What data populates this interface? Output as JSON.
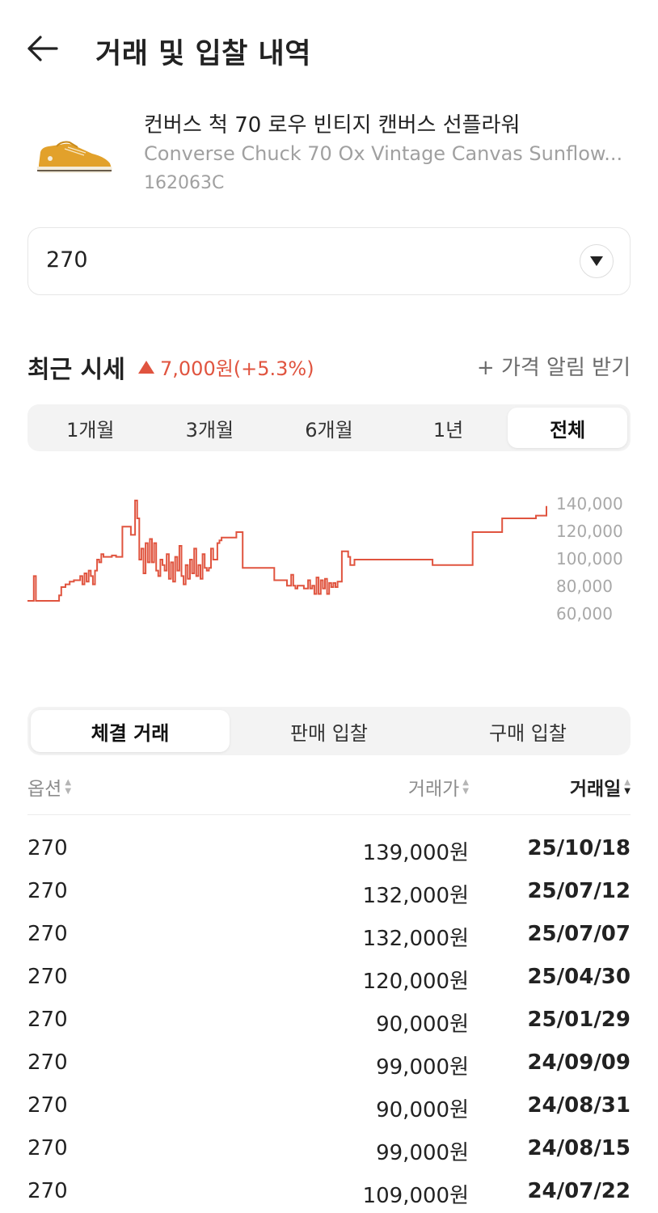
{
  "header": {
    "back_icon": "arrow-left-icon",
    "title": "거래 및 입찰 내역"
  },
  "product": {
    "name_ko": "컨버스 척 70 로우 빈티지 캔버스 선플라워",
    "name_en": "Converse Chuck 70 Ox Vintage Canvas Sunflow...",
    "model_code": "162063C",
    "thumbnail_icon": "sneaker-thumbnail"
  },
  "size_select": {
    "value": "270",
    "icon": "triangle-down-icon"
  },
  "market": {
    "title": "최근 시세",
    "change_icon": "triangle-up-icon",
    "change": "7,000원(+5.3%)",
    "price_alert": "+ 가격 알림 받기",
    "accent_color": "#e0543f"
  },
  "period_tabs": [
    {
      "label": "1개월",
      "active": false
    },
    {
      "label": "3개월",
      "active": false
    },
    {
      "label": "6개월",
      "active": false
    },
    {
      "label": "1년",
      "active": false
    },
    {
      "label": "전체",
      "active": true
    }
  ],
  "chart_data": {
    "type": "line",
    "title": "",
    "xlabel": "",
    "ylabel": "",
    "y_ticks": [
      "140,000",
      "120,000",
      "100,000",
      "80,000",
      "60,000"
    ],
    "ylim": [
      60000,
      140000
    ],
    "grid": false,
    "line_color": "#e0543f",
    "series": [
      {
        "values": [
          70000,
          70000,
          70000,
          88000,
          70000,
          70000,
          70000,
          70000,
          70000,
          70000,
          70000,
          70000,
          70000,
          70000,
          70000,
          74000,
          80000,
          80000,
          82000,
          82000,
          84000,
          84000,
          85000,
          85000,
          85000,
          88000,
          82000,
          90000,
          84000,
          92000,
          88000,
          82000,
          92000,
          100000,
          98000,
          104000,
          102000,
          102000,
          102000,
          102000,
          103000,
          103000,
          102000,
          102000,
          102000,
          124000,
          124000,
          124000,
          124000,
          118000,
          118000,
          143000,
          130000,
          100000,
          108000,
          90000,
          112000,
          98000,
          115000,
          98000,
          112000,
          92000,
          88000,
          100000,
          96000,
          92000,
          104000,
          86000,
          98000,
          84000,
          102000,
          92000,
          110000,
          88000,
          82000,
          96000,
          86000,
          100000,
          90000,
          108000,
          88000,
          96000,
          86000,
          104000,
          94000,
          92000,
          94000,
          108000,
          100000,
          100000,
          112000,
          114000,
          116000,
          116000,
          116000,
          116000,
          116000,
          116000,
          116000,
          120000,
          120000,
          120000,
          94000,
          94000,
          94000,
          94000,
          94000,
          94000,
          94000,
          94000,
          94000,
          94000,
          94000,
          94000,
          94000,
          94000,
          94000,
          85000,
          85000,
          85000,
          85000,
          85000,
          85000,
          81000,
          81000,
          89000,
          81000,
          79000,
          81000,
          81000,
          81000,
          79000,
          79000,
          85000,
          79000,
          81000,
          75000,
          87000,
          75000,
          85000,
          79000,
          86000,
          75000,
          83000,
          80000,
          83000,
          80000,
          84000,
          84000,
          106000,
          106000,
          106000,
          102000,
          96000,
          96000,
          100000,
          100000,
          100000,
          100000,
          100000,
          100000,
          100000,
          100000,
          100000,
          100000,
          100000,
          100000,
          100000,
          100000,
          100000,
          100000,
          100000,
          100000,
          100000,
          100000,
          100000,
          100000,
          100000,
          100000,
          100000,
          100000,
          100000,
          100000,
          100000,
          100000,
          100000,
          100000,
          100000,
          100000,
          100000,
          100000,
          100000,
          96000,
          96000,
          96000,
          96000,
          96000,
          96000,
          96000,
          96000,
          96000,
          96000,
          96000,
          96000,
          96000,
          96000,
          96000,
          96000,
          96000,
          96000,
          96000,
          120000,
          120000,
          120000,
          120000,
          120000,
          120000,
          120000,
          120000,
          120000,
          120000,
          120000,
          120000,
          120000,
          120000,
          130000,
          130000,
          130000,
          130000,
          130000,
          130000,
          130000,
          130000,
          130000,
          130000,
          130000,
          130000,
          130000,
          130000,
          130000,
          130000,
          132000,
          132000,
          132000,
          132000,
          132000,
          139000
        ]
      }
    ]
  },
  "trade_tabs": [
    {
      "label": "체결 거래",
      "active": true
    },
    {
      "label": "판매 입찰",
      "active": false
    },
    {
      "label": "구매 입찰",
      "active": false
    }
  ],
  "table": {
    "headers": {
      "option": "옵션",
      "price": "거래가",
      "date": "거래일"
    },
    "rows": [
      {
        "option": "270",
        "price": "139,000원",
        "date": "25/10/18"
      },
      {
        "option": "270",
        "price": "132,000원",
        "date": "25/07/12"
      },
      {
        "option": "270",
        "price": "132,000원",
        "date": "25/07/07"
      },
      {
        "option": "270",
        "price": "120,000원",
        "date": "25/04/30"
      },
      {
        "option": "270",
        "price": "90,000원",
        "date": "25/01/29"
      },
      {
        "option": "270",
        "price": "99,000원",
        "date": "24/09/09"
      },
      {
        "option": "270",
        "price": "90,000원",
        "date": "24/08/31"
      },
      {
        "option": "270",
        "price": "99,000원",
        "date": "24/08/15"
      },
      {
        "option": "270",
        "price": "109,000원",
        "date": "24/07/22"
      }
    ]
  }
}
